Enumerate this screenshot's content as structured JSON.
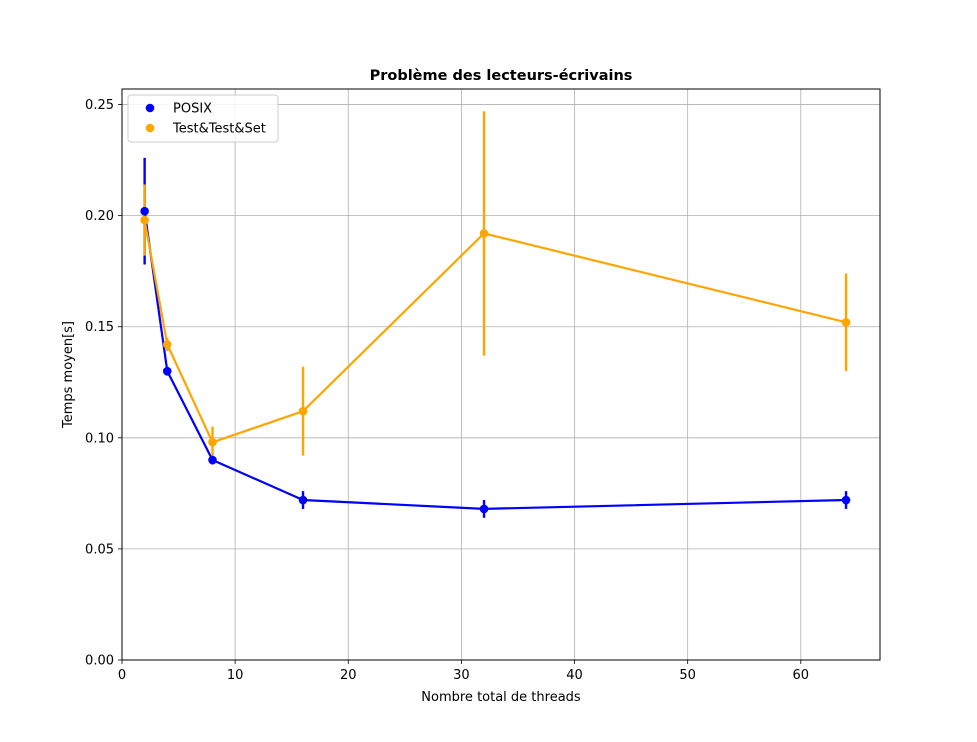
{
  "chart_data": {
    "type": "line",
    "title": "Problème des lecteurs-écrivains",
    "xlabel": "Nombre total de threads",
    "ylabel": "Temps moyen[s]",
    "xlim": [
      0,
      67
    ],
    "ylim": [
      0,
      0.257
    ],
    "x_ticks": [
      0,
      10,
      20,
      30,
      40,
      50,
      60
    ],
    "x_tick_labels": [
      "0",
      "10",
      "20",
      "30",
      "40",
      "50",
      "60"
    ],
    "y_ticks": [
      0,
      0.05,
      0.1,
      0.15,
      0.2,
      0.25
    ],
    "y_tick_labels": [
      "0.00",
      "0.05",
      "0.10",
      "0.15",
      "0.20",
      "0.25"
    ],
    "grid": true,
    "legend_position": "top-left",
    "x": [
      2,
      4,
      8,
      16,
      32,
      64
    ],
    "series": [
      {
        "name": "POSIX",
        "color": "#0000ff",
        "values": [
          0.202,
          0.13,
          0.09,
          0.072,
          0.068,
          0.072
        ],
        "errors": [
          0.024,
          0.002,
          0.002,
          0.004,
          0.004,
          0.004
        ]
      },
      {
        "name": "Test&Test&Set",
        "color": "#ffa500",
        "values": [
          0.198,
          0.142,
          0.098,
          0.112,
          0.192,
          0.152
        ],
        "errors": [
          0.016,
          0.003,
          0.007,
          0.02,
          0.055,
          0.022
        ]
      }
    ]
  }
}
